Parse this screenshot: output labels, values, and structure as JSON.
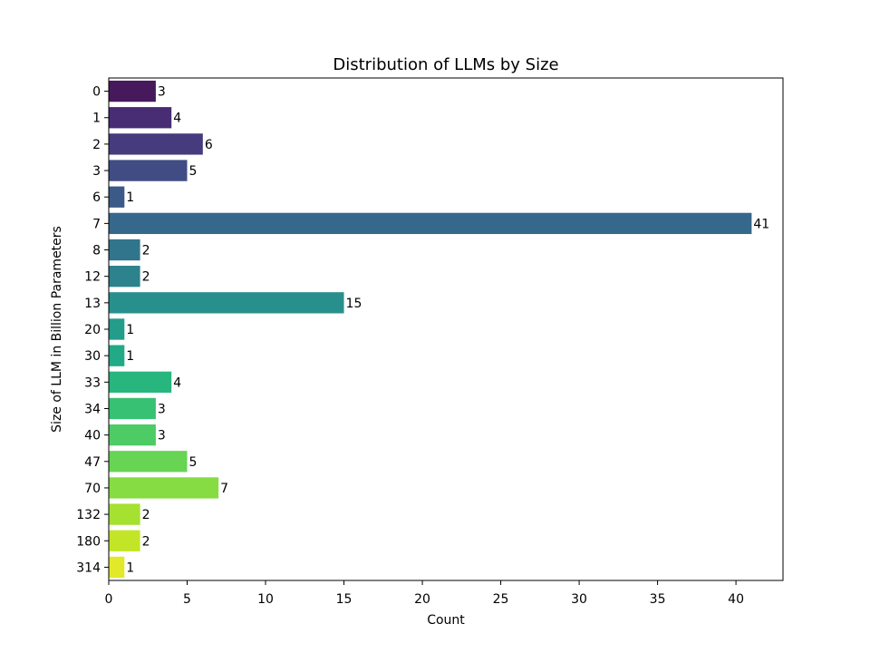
{
  "chart_data": {
    "type": "bar",
    "orientation": "horizontal",
    "title": "Distribution of LLMs by Size",
    "xlabel": "Count",
    "ylabel": "Size of LLM in Billion Parameters",
    "categories": [
      "0",
      "1",
      "2",
      "3",
      "6",
      "7",
      "8",
      "12",
      "13",
      "20",
      "30",
      "33",
      "34",
      "40",
      "47",
      "70",
      "132",
      "180",
      "314"
    ],
    "values": [
      3,
      4,
      6,
      5,
      1,
      41,
      2,
      2,
      15,
      1,
      1,
      4,
      3,
      3,
      5,
      7,
      2,
      2,
      1
    ],
    "colors": [
      "#46195c",
      "#482c74",
      "#463b7d",
      "#414c84",
      "#3b5a88",
      "#36688b",
      "#31758c",
      "#2c828d",
      "#28908c",
      "#239c8a",
      "#20aa85",
      "#27b67e",
      "#37c172",
      "#4dcb65",
      "#67d454",
      "#85dc43",
      "#a4e131",
      "#c3e527",
      "#e1e929"
    ],
    "xlim": [
      0,
      43
    ],
    "xticks": [
      0,
      5,
      10,
      15,
      20,
      25,
      30,
      35,
      40
    ],
    "grid": false,
    "legend": "none"
  }
}
